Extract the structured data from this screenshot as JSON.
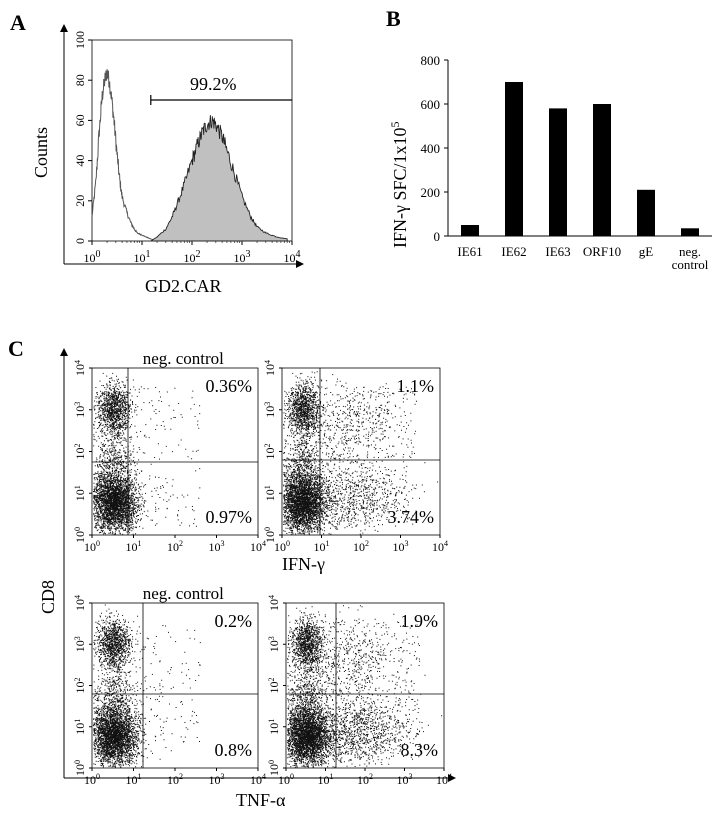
{
  "panel_labels": [
    "A",
    "B",
    "C"
  ],
  "chart_data": [
    {
      "type": "histogram",
      "panel": "A",
      "xlabel": "GD2.CAR",
      "ylabel": "Counts",
      "x_scale": "log",
      "xlim": [
        1,
        10000
      ],
      "ylim": [
        0,
        100
      ],
      "yticks": [
        "0",
        "20",
        "40",
        "60",
        "80",
        "100"
      ],
      "x_exponents": [
        "0",
        "1",
        "2",
        "3",
        "4"
      ],
      "gate_label": "99.2%",
      "gate_range": [
        15,
        10000
      ],
      "series": [
        {
          "style": "open",
          "color": "#555555",
          "x": [
            1.0,
            1.2,
            1.4,
            1.6,
            1.8,
            2.0,
            2.2,
            2.5,
            2.8,
            3.2,
            3.6,
            4.0,
            5.0,
            6.0,
            7.0,
            8.0,
            10.0,
            12.0,
            15.0,
            20.0
          ],
          "y": [
            12,
            30,
            55,
            72,
            80,
            84,
            80,
            70,
            58,
            42,
            30,
            22,
            14,
            9,
            6,
            4,
            3,
            2,
            1,
            0
          ]
        },
        {
          "style": "filled",
          "color": "#c0c0c0",
          "x": [
            15,
            20,
            30,
            40,
            50,
            70,
            100,
            130,
            160,
            200,
            250,
            300,
            400,
            500,
            700,
            1000,
            1500,
            2000,
            3000,
            5000,
            8000
          ],
          "y": [
            0,
            2,
            6,
            12,
            18,
            28,
            40,
            48,
            54,
            58,
            60,
            58,
            52,
            45,
            34,
            22,
            12,
            7,
            4,
            2,
            1
          ]
        }
      ]
    },
    {
      "type": "bar",
      "panel": "B",
      "ylabel": "IFN-γ SFC/1x10",
      "ylabel_sup": "5",
      "categories": [
        "IE61",
        "IE62",
        "IE63",
        "ORF10",
        "gE",
        "neg.|control"
      ],
      "values": [
        50,
        700,
        580,
        600,
        210,
        35
      ],
      "ylim": [
        0,
        800
      ],
      "yticks": [
        0,
        200,
        400,
        600,
        800
      ],
      "color": "#000000"
    },
    {
      "type": "scatter",
      "panel": "C",
      "ylabel": "CD8",
      "x_exponents": [
        "0",
        "1",
        "2",
        "3",
        "4"
      ],
      "xaxis_labels": [
        "IFN-γ",
        "TNF-α"
      ],
      "plots": [
        {
          "title": "neg. control",
          "top_right": "0.36%",
          "bottom_right": "0.97%"
        },
        {
          "title": "",
          "top_right": "1.1%",
          "bottom_right": "3.74%"
        },
        {
          "title": "neg. control",
          "top_right": "0.2%",
          "bottom_right": "0.8%"
        },
        {
          "title": "",
          "top_right": "1.9%",
          "bottom_right": "8.3%"
        }
      ]
    }
  ]
}
